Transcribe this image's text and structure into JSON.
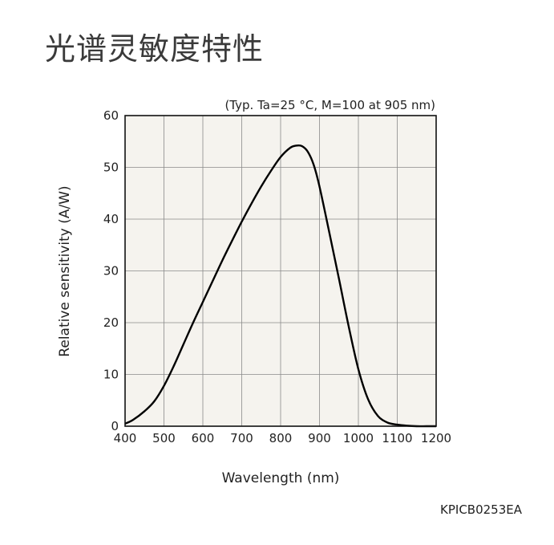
{
  "page": {
    "heading": "光谱灵敏度特性",
    "figure_code": "KPICB0253EA"
  },
  "chart_data": {
    "type": "line",
    "title": "",
    "subtitle": "(Typ. Ta=25 °C, M=100 at 905 nm)",
    "xlabel": "Wavelength (nm)",
    "ylabel": "Relative sensitivity (A/W)",
    "xlim": [
      400,
      1200
    ],
    "ylim": [
      0,
      60
    ],
    "x_ticks": [
      400,
      500,
      600,
      700,
      800,
      900,
      1000,
      1100,
      1200
    ],
    "y_ticks": [
      0,
      10,
      20,
      30,
      40,
      50,
      60
    ],
    "grid": true,
    "plot_background": "#f5f3ee",
    "line_color": "#000000",
    "series": [
      {
        "x": [
          400,
          420,
          450,
          475,
          500,
          525,
          550,
          575,
          600,
          625,
          650,
          675,
          700,
          725,
          750,
          775,
          800,
          825,
          840,
          855,
          870,
          885,
          900,
          925,
          950,
          975,
          1000,
          1025,
          1050,
          1075,
          1100,
          1125,
          1150,
          1175,
          1200
        ],
        "y": [
          0.5,
          1.2,
          2.9,
          4.8,
          7.8,
          11.6,
          15.8,
          20.0,
          24.0,
          28.0,
          32.0,
          35.8,
          39.5,
          43.0,
          46.3,
          49.3,
          52.0,
          53.8,
          54.2,
          54.1,
          53.0,
          50.5,
          46.3,
          37.5,
          28.5,
          19.3,
          11.0,
          5.2,
          2.0,
          0.7,
          0.3,
          0.1,
          0.0,
          0.0,
          0.0
        ]
      }
    ]
  }
}
